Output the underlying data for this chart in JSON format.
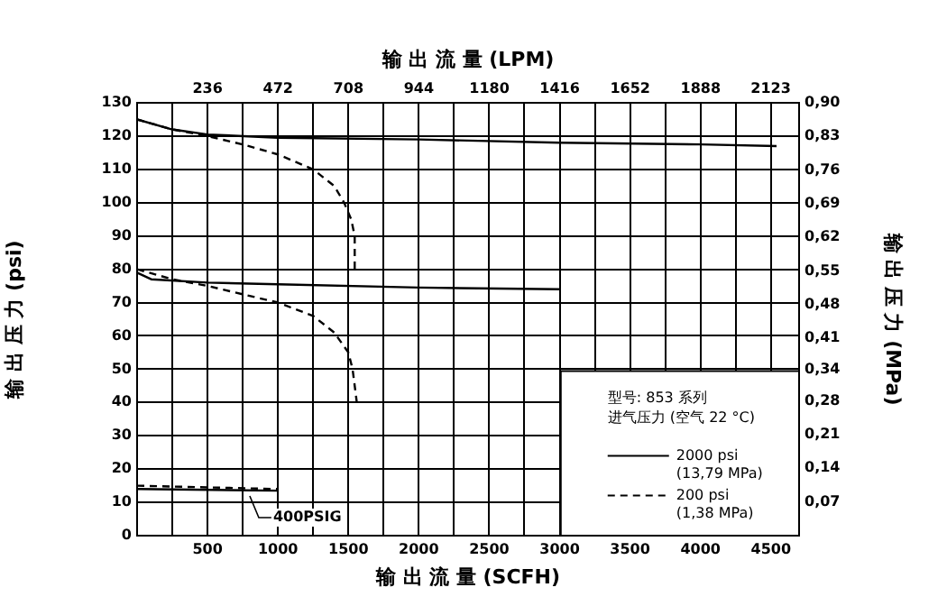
{
  "chart_data": {
    "type": "line",
    "xlabel": "输 出 流 量 (SCFH)",
    "x2label": "输 出 流 量 (LPM)",
    "ylabel": "输 出 压 力 (psi)",
    "y2label": "输 出 压 力 (MPa)",
    "legend_title": "型号: 853 系列",
    "xlim": [
      0,
      4700
    ],
    "ylim": [
      0,
      130
    ],
    "x2lim": [
      0,
      2218
    ],
    "y2lim": [
      0,
      0.9
    ],
    "xticks": [
      {
        "value": 250,
        "label": null
      },
      500,
      {
        "value": 750,
        "label": null
      },
      1000,
      {
        "value": 1250,
        "label": null
      },
      1500,
      {
        "value": 1750,
        "label": null
      },
      2000,
      {
        "value": 2250,
        "label": null
      },
      2500,
      {
        "value": 2750,
        "label": null
      },
      3000,
      {
        "value": 3250,
        "label": null
      },
      3500,
      {
        "value": 3750,
        "label": null
      },
      4000,
      {
        "value": 4250,
        "label": null
      },
      4500
    ],
    "x2ticks": [
      236,
      472,
      708,
      944,
      1180,
      1416,
      1652,
      1888,
      2123
    ],
    "yticks": [
      0,
      10,
      20,
      30,
      40,
      50,
      60,
      70,
      80,
      90,
      100,
      110,
      120,
      130
    ],
    "y2ticks": [
      {
        "value": 0.07,
        "label": "0,07"
      },
      {
        "value": 0.14,
        "label": "0,14"
      },
      {
        "value": 0.21,
        "label": "0,21"
      },
      {
        "value": 0.28,
        "label": "0,28"
      },
      {
        "value": 0.345,
        "label": "0,34"
      },
      {
        "value": 0.41,
        "label": "0,41"
      },
      {
        "value": 0.48,
        "label": "0,48"
      },
      {
        "value": 0.55,
        "label": "0,55"
      },
      {
        "value": 0.62,
        "label": "0,62"
      },
      {
        "value": 0.69,
        "label": "0,69"
      },
      {
        "value": 0.76,
        "label": "0,76"
      },
      {
        "value": 0.83,
        "label": "0,83"
      },
      {
        "value": 0.9,
        "label": "0,90"
      }
    ],
    "grid": true,
    "legend": "bottom right",
    "annotations": [
      {
        "text": "400PSIG",
        "x": 800,
        "y": 13
      },
      "进气压力 (空气 22 °C)"
    ],
    "series": [
      {
        "name": "2000 psi\n(13,79 MPa)",
        "color": "#000000",
        "line_style": "solid",
        "x": [
          0,
          250,
          500,
          1000,
          2000,
          3000,
          4000,
          4540
        ],
        "values": [
          125,
          122,
          120.5,
          119.5,
          119,
          118,
          117.5,
          117
        ]
      },
      {
        "name": "200 psi\n(1,38 MPa)",
        "color": "#000000",
        "line_style": "dashed",
        "x": [
          0,
          250,
          500,
          750,
          1000,
          1250,
          1400,
          1470,
          1520,
          1545,
          1545
        ],
        "values": [
          125,
          122,
          120,
          117.5,
          114.5,
          110,
          105,
          100,
          95,
          90,
          80
        ]
      },
      {
        "color": "#000000",
        "line_style": "solid",
        "x": [
          0,
          100,
          500,
          1000,
          2000,
          3000
        ],
        "values": [
          79,
          77,
          76,
          75.5,
          74.5,
          74
        ]
      },
      {
        "color": "#000000",
        "line_style": "dashed",
        "x": [
          0,
          250,
          500,
          750,
          1000,
          1250,
          1400,
          1500,
          1530,
          1560
        ],
        "values": [
          80,
          77,
          75,
          72.5,
          70,
          66,
          61,
          55,
          50,
          40
        ]
      },
      {
        "color": "#000000",
        "line_style": "solid",
        "x": [
          0,
          1000
        ],
        "values": [
          14,
          13.5
        ]
      },
      {
        "color": "#000000",
        "line_style": "dashed",
        "x": [
          0,
          1000
        ],
        "values": [
          15,
          14
        ]
      }
    ]
  }
}
